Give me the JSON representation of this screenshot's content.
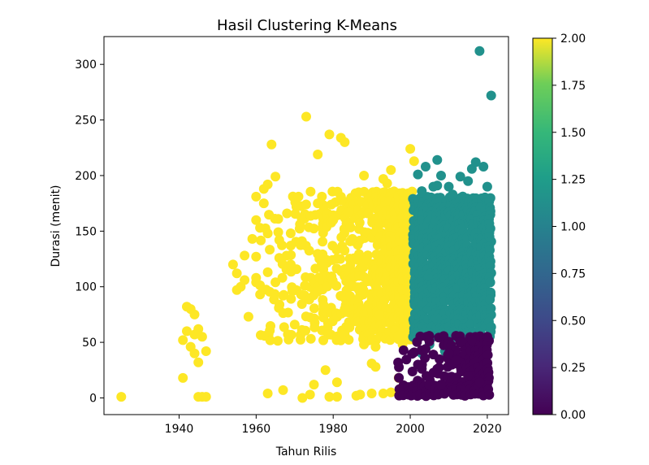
{
  "chart_data": {
    "type": "scatter",
    "title": "Hasil Clustering K-Means",
    "xlabel": "Tahun Rilis",
    "ylabel": "Durasi (menit)",
    "xlim": [
      1920.5,
      2025.5
    ],
    "ylim": [
      -15,
      325
    ],
    "xticks": [
      1940,
      1960,
      1980,
      2000,
      2020
    ],
    "yticks": [
      0,
      50,
      100,
      150,
      200,
      250,
      300
    ],
    "grid": false,
    "colorbar": {
      "min": 0.0,
      "max": 2.0,
      "ticks": [
        "0.00",
        "0.25",
        "0.50",
        "0.75",
        "1.00",
        "1.25",
        "1.50",
        "1.75",
        "2.00"
      ],
      "colormap": "viridis",
      "colors": [
        "#440154",
        "#3b528b",
        "#21918c",
        "#5ec962",
        "#fde725"
      ]
    },
    "series": [
      {
        "cluster": 2,
        "color": "#fde725",
        "points": [
          [
            1925,
            1
          ],
          [
            1941,
            18
          ],
          [
            1941,
            52
          ],
          [
            1942,
            82
          ],
          [
            1942,
            60
          ],
          [
            1943,
            46
          ],
          [
            1943,
            80
          ],
          [
            1944,
            40
          ],
          [
            1944,
            57
          ],
          [
            1944,
            75
          ],
          [
            1945,
            62
          ],
          [
            1945,
            32
          ],
          [
            1945,
            1
          ],
          [
            1946,
            55
          ],
          [
            1946,
            1
          ],
          [
            1947,
            1
          ],
          [
            1947,
            42
          ],
          [
            1954,
            120
          ],
          [
            1955,
            97
          ],
          [
            1955,
            112
          ],
          [
            1956,
            100
          ],
          [
            1957,
            128
          ],
          [
            1957,
            106
          ],
          [
            1958,
            73
          ],
          [
            1959,
            143
          ],
          [
            1960,
            160
          ],
          [
            1960,
            127
          ],
          [
            1960,
            108
          ],
          [
            1960,
            181
          ],
          [
            1961,
            153
          ],
          [
            1962,
            188
          ],
          [
            1962,
            175
          ],
          [
            1963,
            192
          ],
          [
            1963,
            148
          ],
          [
            1963,
            113
          ],
          [
            1963,
            4
          ],
          [
            1964,
            228
          ],
          [
            1965,
            199
          ],
          [
            1965,
            104
          ],
          [
            1966,
            142
          ],
          [
            1966,
            126
          ],
          [
            1967,
            92
          ],
          [
            1967,
            7
          ],
          [
            1968,
            166
          ],
          [
            1969,
            120
          ],
          [
            1969,
            137
          ],
          [
            1970,
            66
          ],
          [
            1971,
            181
          ],
          [
            1972,
            0
          ],
          [
            1973,
            253
          ],
          [
            1974,
            3
          ],
          [
            1975,
            12
          ],
          [
            1976,
            219
          ],
          [
            1976,
            175
          ],
          [
            1977,
            120
          ],
          [
            1978,
            25
          ],
          [
            1979,
            237
          ],
          [
            1979,
            1
          ],
          [
            1980,
            160
          ],
          [
            1981,
            1
          ],
          [
            1981,
            14
          ],
          [
            1982,
            234
          ],
          [
            1983,
            230
          ],
          [
            1983,
            80
          ],
          [
            1984,
            167
          ],
          [
            1985,
            143
          ],
          [
            1986,
            2
          ],
          [
            1987,
            3
          ],
          [
            1988,
            200
          ],
          [
            1988,
            48
          ],
          [
            1989,
            166
          ],
          [
            1990,
            31
          ],
          [
            1990,
            4
          ],
          [
            1991,
            28
          ],
          [
            1991,
            46
          ],
          [
            1992,
            75
          ],
          [
            1993,
            197
          ],
          [
            1993,
            4
          ],
          [
            1994,
            193
          ],
          [
            1995,
            205
          ],
          [
            1995,
            5
          ],
          [
            1996,
            61
          ],
          [
            1997,
            56
          ],
          [
            1997,
            18
          ],
          [
            1998,
            48
          ],
          [
            1999,
            5
          ],
          [
            2000,
            224
          ],
          [
            2001,
            213
          ]
        ],
        "dense_region": {
          "x": [
            1960,
            2001
          ],
          "y": [
            52,
            185
          ]
        }
      },
      {
        "cluster": 1,
        "color": "#21918c",
        "points": [
          [
            2002,
            201
          ],
          [
            2003,
            186
          ],
          [
            2004,
            208
          ],
          [
            2006,
            190
          ],
          [
            2007,
            214
          ],
          [
            2007,
            191
          ],
          [
            2008,
            200
          ],
          [
            2010,
            190
          ],
          [
            2011,
            183
          ],
          [
            2013,
            199
          ],
          [
            2015,
            195
          ],
          [
            2016,
            206
          ],
          [
            2017,
            212
          ],
          [
            2018,
            312
          ],
          [
            2019,
            208
          ],
          [
            2020,
            190
          ],
          [
            2021,
            272
          ],
          [
            2003,
            40
          ],
          [
            2005,
            48
          ],
          [
            2009,
            42
          ]
        ],
        "dense_region": {
          "x": [
            2001,
            2021
          ],
          "y": [
            55,
            180
          ]
        }
      },
      {
        "cluster": 0,
        "color": "#440154",
        "points": [
          [
            2001,
            41
          ],
          [
            2002,
            30
          ],
          [
            2004,
            44
          ],
          [
            2006,
            39
          ],
          [
            2007,
            26
          ],
          [
            2008,
            12
          ],
          [
            2010,
            40
          ],
          [
            2012,
            34
          ],
          [
            2013,
            50
          ],
          [
            2015,
            20
          ],
          [
            2016,
            52
          ],
          [
            2018,
            14
          ],
          [
            2020,
            55
          ]
        ],
        "dense_region": {
          "x": [
            1997,
            2021
          ],
          "y": [
            0,
            55
          ]
        }
      }
    ]
  }
}
